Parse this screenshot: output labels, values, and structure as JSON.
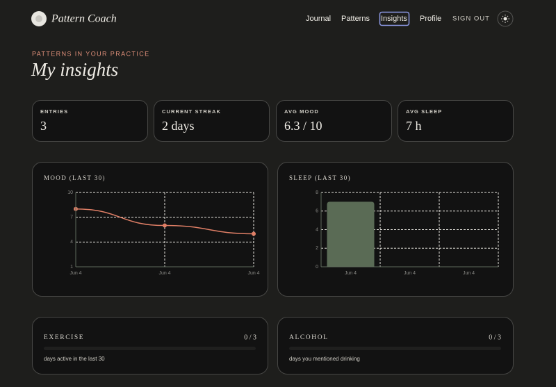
{
  "header": {
    "brand": "Pattern Coach",
    "nav": [
      "Journal",
      "Patterns",
      "Insights",
      "Profile"
    ],
    "sign_out": "SIGN OUT"
  },
  "page": {
    "eyebrow": "PATTERNS IN YOUR PRACTICE",
    "title": "My insights"
  },
  "stats": [
    {
      "label": "ENTRIES",
      "value": "3"
    },
    {
      "label": "CURRENT STREAK",
      "value": "2 days"
    },
    {
      "label": "AVG MOOD",
      "value": "6.3 / 10"
    },
    {
      "label": "AVG SLEEP",
      "value": "7 h"
    }
  ],
  "chart_data": [
    {
      "type": "line",
      "title": "MOOD (LAST 30)",
      "categories": [
        "Jun 4",
        "Jun 4",
        "Jun 4"
      ],
      "values": [
        8,
        6,
        5
      ],
      "color": "#e07f66",
      "ylim": [
        1,
        10
      ],
      "yticks": [
        1,
        4,
        7,
        10
      ],
      "grid": true
    },
    {
      "type": "bar",
      "title": "SLEEP (LAST 30)",
      "categories": [
        "Jun 4",
        "Jun 4",
        "Jun 4"
      ],
      "values": [
        7,
        null,
        null
      ],
      "color": "#5a6b55",
      "ylim": [
        0,
        8
      ],
      "yticks": [
        0,
        2,
        4,
        6,
        8
      ],
      "grid": true
    }
  ],
  "habits": [
    {
      "label": "EXERCISE",
      "value": 0,
      "max": 3,
      "display": "0 / 3",
      "note": "days active in the last 30"
    },
    {
      "label": "ALCOHOL",
      "value": 0,
      "max": 3,
      "display": "0 / 3",
      "note": "days you mentioned drinking"
    }
  ]
}
